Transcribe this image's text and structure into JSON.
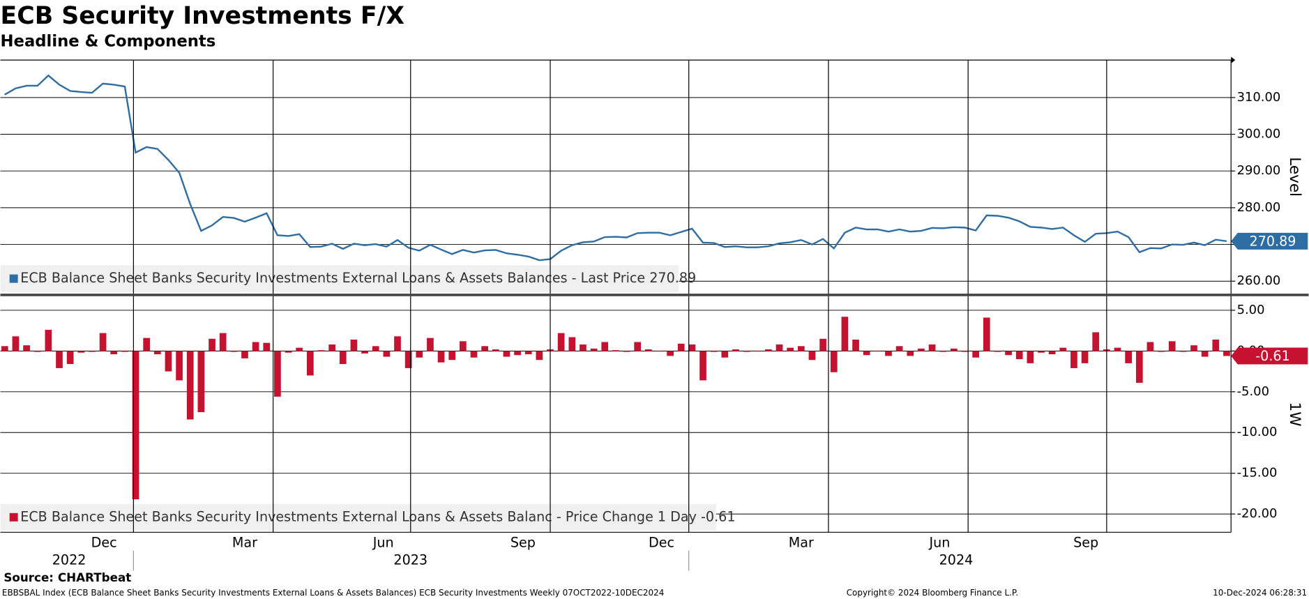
{
  "title": "ECB Security Investments F/X",
  "subtitle": "Headline & Components",
  "source": "Source: CHARTbeat",
  "footer": {
    "left": "EBBSBAL Index (ECB Balance Sheet Banks Security Investments External Loans & Assets Balances) ECB Security Investments  Weekly 07OCT2022-10DEC2024",
    "center": "Copyright© 2024 Bloomberg Finance L.P.",
    "right": "10-Dec-2024 06:28:31"
  },
  "chart_data": [
    {
      "type": "line",
      "ylabel": "Level",
      "xlim": [
        -0.4,
        112.4
      ],
      "ylim": [
        256.6,
        320.2
      ],
      "yticks": [
        {
          "value": 260,
          "label": "260.00"
        },
        {
          "value": 280,
          "label": "280.00"
        },
        {
          "value": 290,
          "label": "290.00"
        },
        {
          "value": 300,
          "label": "300.00"
        },
        {
          "value": 310,
          "label": "310.00"
        }
      ],
      "ygrid": [
        270
      ],
      "grid": true,
      "series": [
        {
          "name": "ECB Balance Sheet Banks Security Investments External Loans & Assets Balances - Last Price 270.89",
          "color": "#2e6da4",
          "values": [
            310.8,
            312.5,
            313.2,
            313.2,
            316,
            313.5,
            311.8,
            311.5,
            311.3,
            313.8,
            313.5,
            313,
            295,
            296.5,
            296,
            293,
            289.5,
            281,
            273.7,
            275.2,
            277.5,
            277.2,
            276.2,
            277.3,
            278.5,
            272.5,
            272.3,
            272.8,
            269.3,
            269.4,
            270.2,
            268.8,
            270.2,
            269.8,
            270.1,
            269.4,
            271.2,
            269.1,
            268.3,
            269.9,
            268.6,
            267.4,
            268.5,
            267.8,
            268.4,
            268.5,
            267.6,
            267.2,
            266.7,
            265.7,
            266,
            268.3,
            269.8,
            270.6,
            270.8,
            272,
            272.1,
            271.9,
            273.1,
            273.2,
            273.2,
            272.5,
            273.4,
            274.3,
            270.5,
            270.4,
            269.3,
            269.5,
            269.2,
            269.2,
            269.5,
            270.3,
            270.6,
            271.2,
            270,
            271.5,
            268.9,
            273.2,
            274.6,
            274.1,
            274.1,
            273.5,
            274.1,
            273.5,
            273.7,
            274.5,
            274.4,
            274.7,
            274.6,
            273.8,
            277.9,
            277.8,
            277.3,
            276.3,
            274.8,
            274.6,
            274.2,
            274.6,
            272.5,
            270.7,
            272.9,
            273.1,
            273.5,
            272,
            267.9,
            269,
            268.9,
            270,
            269.9,
            270.5,
            269.8,
            271.3,
            270.89
          ]
        }
      ]
    },
    {
      "type": "bar",
      "ylabel": "1W",
      "xlim": [
        -0.4,
        112.4
      ],
      "ylim": [
        -22.24,
        6.73
      ],
      "yticks": [
        {
          "value": -20,
          "label": "-20.00"
        },
        {
          "value": -15,
          "label": "-15.00"
        },
        {
          "value": -10,
          "label": "-10.00"
        },
        {
          "value": -5,
          "label": "-5.00"
        },
        {
          "value": 0,
          "label": "0.00"
        },
        {
          "value": 5,
          "label": "5.00"
        }
      ],
      "grid": true,
      "xticks": [
        {
          "value": 9.1,
          "label": "Dec"
        },
        {
          "value": 22,
          "label": "Mar"
        },
        {
          "value": 34.7,
          "label": "Jun"
        },
        {
          "value": 47.5,
          "label": "Sep"
        },
        {
          "value": 60.2,
          "label": "Dec"
        },
        {
          "value": 73,
          "label": "Mar"
        },
        {
          "value": 85.7,
          "label": "Jun"
        },
        {
          "value": 99.1,
          "label": "Sep"
        }
      ],
      "year_labels": [
        {
          "value": 5.9,
          "label": "2022"
        },
        {
          "value": 37.2,
          "label": "2023"
        },
        {
          "value": 87.2,
          "label": "2024"
        }
      ],
      "year_breaks": [
        11.8,
        62.7
      ],
      "xgrid": [
        11.8,
        24.6,
        37.2,
        50,
        62.7,
        75.5,
        88.3,
        101
      ],
      "series": [
        {
          "name": "ECB Balance Sheet Banks Security Investments External Loans & Assets Balanc - Price Change 1 Day -0.61",
          "color": "#c41230",
          "values": [
            0.6,
            1.8,
            0.7,
            -0.1,
            2.6,
            -2.1,
            -1.6,
            -0.2,
            -0.1,
            2.2,
            -0.4,
            -0.1,
            -18.2,
            1.6,
            -0.4,
            -2.5,
            -3.6,
            -8.4,
            -7.5,
            1.5,
            2.2,
            -0.1,
            -0.9,
            1.1,
            1.0,
            -5.6,
            -0.2,
            0.4,
            -3.0,
            0.1,
            0.8,
            -1.6,
            1.4,
            -0.3,
            0.6,
            -0.7,
            1.8,
            -2.1,
            -0.8,
            1.6,
            -1.4,
            -1.1,
            1.2,
            -0.8,
            0.6,
            0.2,
            -0.7,
            -0.5,
            -0.4,
            -1.1,
            0.2,
            2.2,
            1.7,
            0.8,
            0.3,
            1.1,
            0.1,
            -0.1,
            1.1,
            0.2,
            0.0,
            -0.6,
            0.9,
            0.8,
            -3.6,
            -0.1,
            -0.8,
            0.2,
            -0.1,
            0.0,
            0.2,
            0.8,
            0.4,
            0.6,
            -1.1,
            1.5,
            -2.6,
            4.2,
            1.4,
            -0.5,
            0.0,
            -0.6,
            0.6,
            -0.6,
            0.3,
            0.8,
            -0.1,
            0.3,
            -0.1,
            -0.8,
            4.1,
            -0.1,
            -0.5,
            -1.0,
            -1.5,
            -0.2,
            -0.4,
            0.4,
            -2.1,
            -1.5,
            2.3,
            0.2,
            0.4,
            -1.5,
            -3.9,
            1.1,
            -0.1,
            1.2,
            -0.1,
            0.7,
            -0.7,
            1.4,
            -0.61
          ]
        }
      ]
    }
  ]
}
